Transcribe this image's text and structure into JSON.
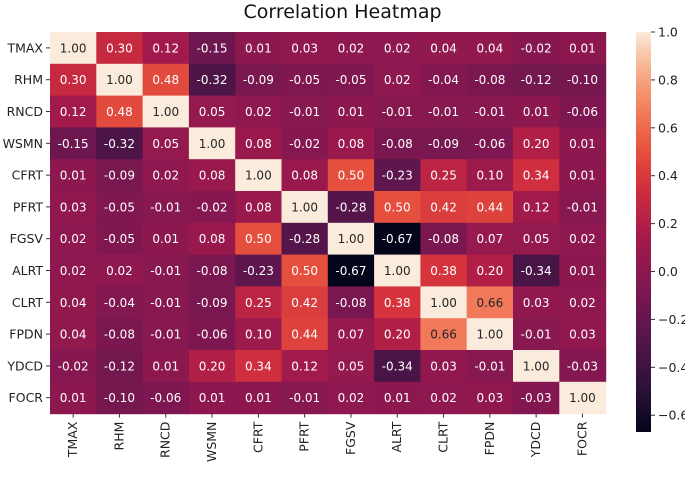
{
  "chart_data": {
    "type": "heatmap",
    "title": "Correlation Heatmap",
    "xlabel": "",
    "ylabel": "",
    "row_labels": [
      "TMAX",
      "RHM",
      "RNCD",
      "WSMN",
      "CFRT",
      "PFRT",
      "FGSV",
      "ALRT",
      "CLRT",
      "FPDN",
      "YDCD",
      "FOCR"
    ],
    "col_labels": [
      "TMAX",
      "RHM",
      "RNCD",
      "WSMN",
      "CFRT",
      "PFRT",
      "FGSV",
      "ALRT",
      "CLRT",
      "FPDN",
      "YDCD",
      "FOCR"
    ],
    "values": [
      [
        1.0,
        0.3,
        0.12,
        -0.15,
        0.01,
        0.03,
        0.02,
        0.02,
        0.04,
        0.04,
        -0.02,
        0.01
      ],
      [
        0.3,
        1.0,
        0.48,
        -0.32,
        -0.09,
        -0.05,
        -0.05,
        0.02,
        -0.04,
        -0.08,
        -0.12,
        -0.1
      ],
      [
        0.12,
        0.48,
        1.0,
        0.05,
        0.02,
        -0.01,
        0.01,
        -0.01,
        -0.01,
        -0.01,
        0.01,
        -0.06
      ],
      [
        -0.15,
        -0.32,
        0.05,
        1.0,
        0.08,
        -0.02,
        0.08,
        -0.08,
        -0.09,
        -0.06,
        0.2,
        0.01
      ],
      [
        0.01,
        -0.09,
        0.02,
        0.08,
        1.0,
        0.08,
        0.5,
        -0.23,
        0.25,
        0.1,
        0.34,
        0.01
      ],
      [
        0.03,
        -0.05,
        -0.01,
        -0.02,
        0.08,
        1.0,
        -0.28,
        0.5,
        0.42,
        0.44,
        0.12,
        -0.01
      ],
      [
        0.02,
        -0.05,
        0.01,
        0.08,
        0.5,
        -0.28,
        1.0,
        -0.67,
        -0.08,
        0.07,
        0.05,
        0.02
      ],
      [
        0.02,
        0.02,
        -0.01,
        -0.08,
        -0.23,
        0.5,
        -0.67,
        1.0,
        0.38,
        0.2,
        -0.34,
        0.01
      ],
      [
        0.04,
        -0.04,
        -0.01,
        -0.09,
        0.25,
        0.42,
        -0.08,
        0.38,
        1.0,
        0.66,
        0.03,
        0.02
      ],
      [
        0.04,
        -0.08,
        -0.01,
        -0.06,
        0.1,
        0.44,
        0.07,
        0.2,
        0.66,
        1.0,
        -0.01,
        0.03
      ],
      [
        -0.02,
        -0.12,
        0.01,
        0.2,
        0.34,
        0.12,
        0.05,
        -0.34,
        0.03,
        -0.01,
        1.0,
        -0.03
      ],
      [
        0.01,
        -0.1,
        -0.06,
        0.01,
        0.01,
        -0.01,
        0.02,
        0.01,
        0.02,
        0.03,
        -0.03,
        1.0
      ]
    ],
    "value_format": "0.00",
    "color_range": [
      -0.67,
      1.0
    ],
    "colormap": "rocket",
    "colorbar_ticks": [
      1.0,
      0.8,
      0.6,
      0.4,
      0.2,
      0.0,
      -0.2,
      -0.4,
      -0.6
    ],
    "colorbar_tick_labels": [
      "1.0",
      "0.8",
      "0.6",
      "0.4",
      "0.2",
      "0.0",
      "−0.2",
      "−0.4",
      "−0.6"
    ],
    "colorbar_position": "right"
  }
}
